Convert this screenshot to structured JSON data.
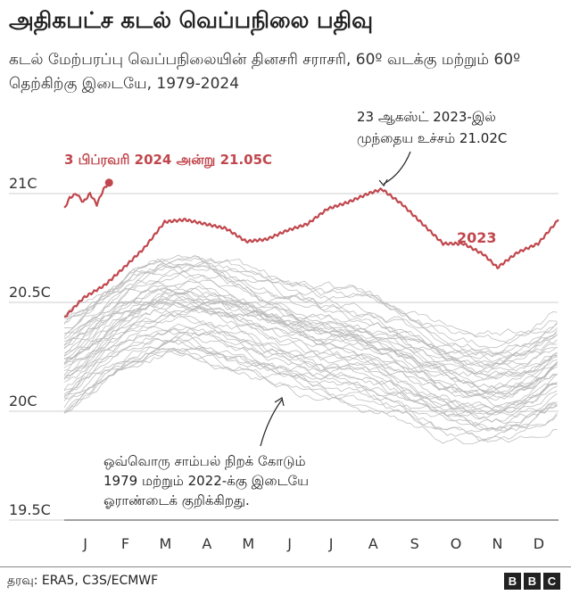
{
  "header": {
    "title": "அதிகபட்ச கடல் வெப்பநிலை பதிவு",
    "subtitle": "கடல் மேற்பரப்பு வெப்பநிலையின் தினசரி சராசரி, 60º வடக்கு மற்றும் 60º தெற்கிற்கு இடையே, 1979-2024"
  },
  "footer": {
    "source": "தரவு: ERA5, C3S/ECMWF",
    "logo_letters": [
      "B",
      "B",
      "C"
    ]
  },
  "chart_data": {
    "type": "line",
    "x_axis": {
      "tick_labels": [
        "J",
        "F",
        "M",
        "A",
        "M",
        "J",
        "J",
        "A",
        "S",
        "O",
        "N",
        "D"
      ],
      "range": [
        1,
        365
      ]
    },
    "y_axis": {
      "ticks": [
        19.5,
        20,
        20.5,
        21
      ],
      "tick_labels": [
        "19.5C",
        "20C",
        "20.5C",
        "21C"
      ],
      "range": [
        19.5,
        21.2
      ],
      "grid": true
    },
    "colors": {
      "highlight": "#c0474d",
      "history": "#b8b8b8",
      "grid": "#cfcfcf",
      "annotation": "#222222"
    },
    "annotations": {
      "max_2024": "3 பிப்ரவரி 2024 அன்று 21.05C",
      "peak_2023_line1": "23 ஆகஸ்ட் 2023-இல்",
      "peak_2023_line2": "முந்தைய உச்சம் 21.02C",
      "label_2023": "2023",
      "grey_line1": "ஒவ்வொரு சாம்பல் நிறக் கோடும்",
      "grey_line2": "1979 மற்றும் 2022-க்கு இடையே",
      "grey_line3": "ஓராண்டைக் குறிக்கிறது."
    },
    "series": [
      {
        "name": "2023",
        "day": [
          1,
          15,
          31,
          45,
          60,
          75,
          90,
          105,
          120,
          135,
          150,
          165,
          180,
          195,
          210,
          225,
          235,
          250,
          265,
          280,
          295,
          310,
          320,
          335,
          350,
          365
        ],
        "values": [
          20.43,
          20.52,
          20.58,
          20.66,
          20.75,
          20.87,
          20.88,
          20.86,
          20.84,
          20.78,
          20.79,
          20.83,
          20.86,
          20.93,
          20.96,
          21.0,
          21.02,
          20.95,
          20.86,
          20.77,
          20.77,
          20.72,
          20.66,
          20.73,
          20.77,
          20.88
        ]
      },
      {
        "name": "2024",
        "day": [
          1,
          5,
          10,
          15,
          20,
          25,
          30,
          34
        ],
        "values": [
          20.93,
          20.98,
          21.0,
          20.96,
          21.0,
          20.95,
          21.02,
          21.05
        ]
      }
    ],
    "grey_series_count": 44,
    "grey_series_range": [
      19.85,
      20.9
    ]
  }
}
